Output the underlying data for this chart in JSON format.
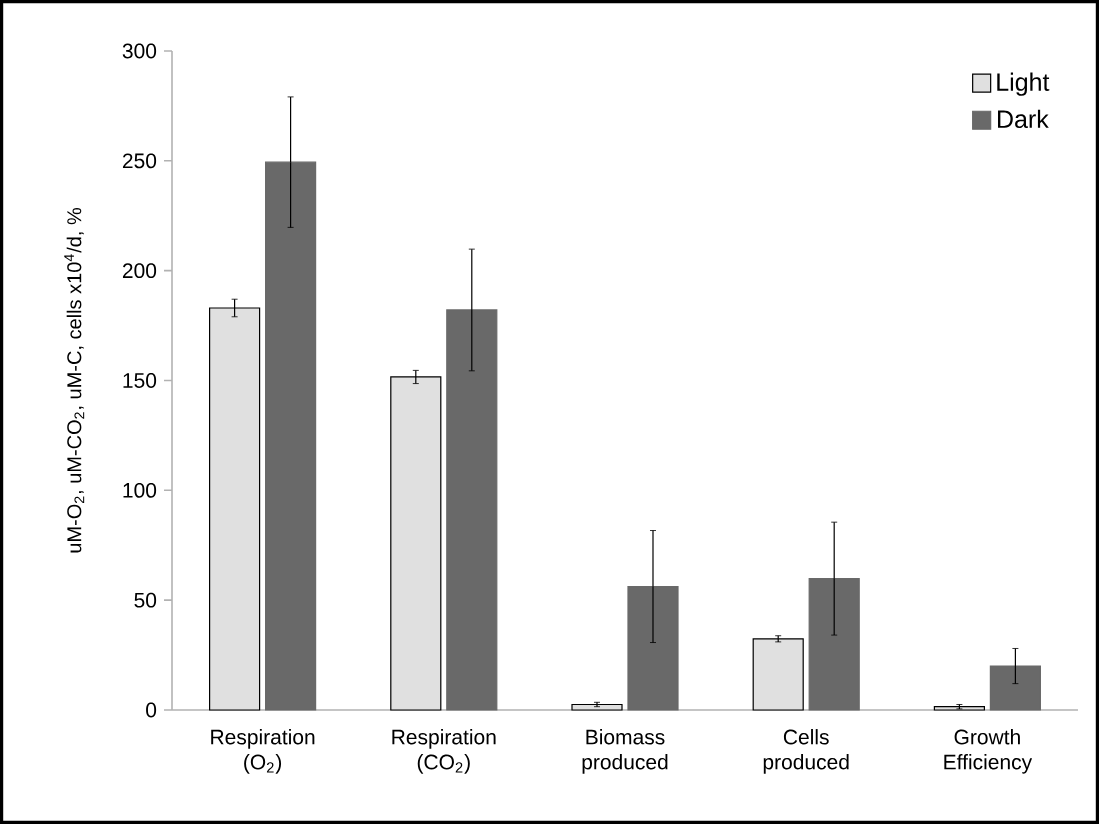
{
  "chart_data": {
    "type": "bar",
    "ylabel": "uM-O$_{2}$, uM-CO$_{2}$, uM-C, cells x10$^{4}$/d, %",
    "categories": [
      "Respiration (O$_{2}$)",
      "Respiration (CO$_{2}$)",
      "Biomass produced",
      "Cells produced",
      "Growth Efficiency"
    ],
    "series": [
      {
        "name": "Light",
        "color": "#e0e0e0",
        "values": [
          183,
          151.6,
          2.5,
          32.4,
          1.5
        ],
        "errors": [
          4,
          3,
          1,
          1.4,
          1
        ]
      },
      {
        "name": "Dark",
        "color": "#696969",
        "values": [
          249.4,
          182.1,
          56.2,
          59.8,
          20
        ],
        "errors": [
          29.7,
          27.7,
          25.5,
          25.7,
          8
        ]
      }
    ],
    "ylim": [
      0,
      300
    ],
    "yticks": [
      0,
      50,
      100,
      150,
      200,
      250,
      300
    ],
    "legend": "top right"
  }
}
